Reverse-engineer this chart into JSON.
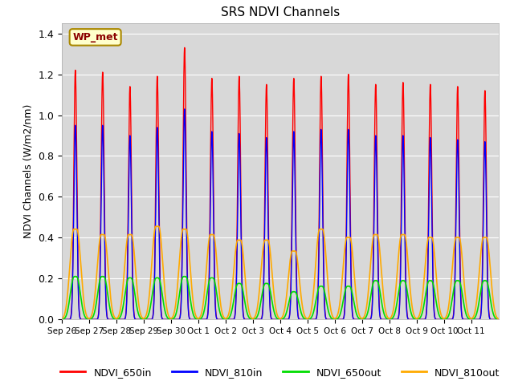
{
  "title": "SRS NDVI Channels",
  "ylabel": "NDVI Channels (W/m2/nm)",
  "annotation": "WP_met",
  "ylim": [
    0,
    1.45
  ],
  "colors": {
    "NDVI_650in": "#ff0000",
    "NDVI_810in": "#0000ff",
    "NDVI_650out": "#00dd00",
    "NDVI_810out": "#ffaa00"
  },
  "background_color": "#d8d8d8",
  "tick_labels": [
    "Sep 26",
    "Sep 27",
    "Sep 28",
    "Sep 29",
    "Sep 30",
    "Oct 1",
    "Oct 2",
    "Oct 3",
    "Oct 4",
    "Oct 5",
    "Oct 6",
    "Oct 7",
    "Oct 8",
    "Oct 9",
    "Oct 10",
    "Oct 11"
  ],
  "n_days": 16,
  "peak_650in": [
    1.22,
    1.21,
    1.14,
    1.19,
    1.33,
    1.18,
    1.19,
    1.15,
    1.18,
    1.19,
    1.2,
    1.15,
    1.16,
    1.15,
    1.14,
    1.12
  ],
  "peak_810in": [
    0.95,
    0.95,
    0.9,
    0.94,
    1.03,
    0.92,
    0.91,
    0.89,
    0.92,
    0.93,
    0.93,
    0.9,
    0.9,
    0.89,
    0.88,
    0.87
  ],
  "peak_650out": [
    0.155,
    0.155,
    0.15,
    0.15,
    0.155,
    0.15,
    0.13,
    0.13,
    0.1,
    0.12,
    0.12,
    0.14,
    0.14,
    0.14,
    0.14,
    0.14
  ],
  "peak_810out": [
    0.33,
    0.31,
    0.31,
    0.34,
    0.33,
    0.31,
    0.29,
    0.29,
    0.25,
    0.33,
    0.3,
    0.31,
    0.31,
    0.3,
    0.3,
    0.3
  ],
  "figsize": [
    6.4,
    4.8
  ],
  "dpi": 100
}
